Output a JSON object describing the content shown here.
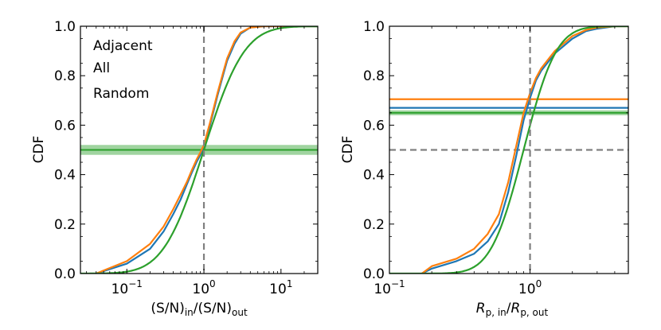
{
  "chart_data": [
    {
      "type": "line",
      "xscale": "log",
      "xlim": [
        0.025,
        30
      ],
      "ylim": [
        0,
        1
      ],
      "xlabel": "(S/N)in/(S/N)out",
      "xlabel_parts": {
        "open": "(S/N)",
        "sub1": "in",
        "mid": "/(S/N)",
        "sub2": "out"
      },
      "ylabel": "CDF",
      "xticks": [
        {
          "value": 0.1,
          "base": "10",
          "exp": "−1"
        },
        {
          "value": 1,
          "base": "10",
          "exp": "0"
        },
        {
          "value": 10,
          "base": "10",
          "exp": "1"
        }
      ],
      "yticks": [
        0.0,
        0.2,
        0.4,
        0.6,
        0.8,
        1.0
      ],
      "ytick_labels": [
        "0.0",
        "0.2",
        "0.4",
        "0.6",
        "0.8",
        "1.0"
      ],
      "legend": [
        {
          "label": "Adjacent",
          "color": "#1f77b4"
        },
        {
          "label": "All",
          "color": "#ff7f0e"
        },
        {
          "label": "Random",
          "color": "#2ca02c"
        }
      ],
      "series": [
        {
          "name": "Adjacent",
          "color": "#1f77b4",
          "x": [
            0.04,
            0.1,
            0.2,
            0.3,
            0.4,
            0.5,
            0.6,
            0.7,
            0.8,
            0.9,
            1.0,
            1.2,
            1.5,
            1.8,
            2.0,
            2.5,
            3.0,
            4.0,
            6.0
          ],
          "y": [
            0.0,
            0.04,
            0.1,
            0.17,
            0.24,
            0.3,
            0.36,
            0.41,
            0.45,
            0.48,
            0.51,
            0.6,
            0.72,
            0.81,
            0.86,
            0.93,
            0.97,
            0.995,
            1.0
          ]
        },
        {
          "name": "All",
          "color": "#ff7f0e",
          "x": [
            0.04,
            0.1,
            0.2,
            0.3,
            0.4,
            0.5,
            0.6,
            0.7,
            0.8,
            0.9,
            1.0,
            1.2,
            1.5,
            1.8,
            2.0,
            2.5,
            3.0,
            4.0,
            6.0
          ],
          "y": [
            0.0,
            0.05,
            0.12,
            0.19,
            0.26,
            0.32,
            0.37,
            0.42,
            0.46,
            0.49,
            0.52,
            0.61,
            0.73,
            0.82,
            0.87,
            0.94,
            0.975,
            0.995,
            1.0
          ]
        },
        {
          "name": "Random",
          "color": "#2ca02c",
          "model": "lognormal_cdf",
          "median": 1.0,
          "sigma_ln": 0.95
        }
      ],
      "vlines": [
        {
          "x": 1.0,
          "style": "dashed",
          "color": "#808080"
        }
      ],
      "hbands": [
        {
          "y": 0.5,
          "low": 0.48,
          "high": 0.52,
          "color": "#2ca02c"
        }
      ]
    },
    {
      "type": "line",
      "xscale": "log",
      "xlim": [
        0.1,
        5
      ],
      "ylim": [
        0,
        1
      ],
      "xlabel": "Rp,in/Rp,out",
      "xlabel_parts": {
        "r1": "R",
        "sub1": "p, in",
        "slash": "/",
        "r2": "R",
        "sub2": "p, out"
      },
      "ylabel": "CDF",
      "xticks": [
        {
          "value": 0.1,
          "base": "10",
          "exp": "−1"
        },
        {
          "value": 1,
          "base": "10",
          "exp": "0"
        }
      ],
      "yticks": [
        0.0,
        0.2,
        0.4,
        0.6,
        0.8,
        1.0
      ],
      "ytick_labels": [
        "0.0",
        "0.2",
        "0.4",
        "0.6",
        "0.8",
        "1.0"
      ],
      "series": [
        {
          "name": "Adjacent",
          "color": "#1f77b4",
          "x": [
            0.17,
            0.2,
            0.3,
            0.4,
            0.5,
            0.6,
            0.7,
            0.8,
            0.9,
            1.0,
            1.1,
            1.2,
            1.5,
            2.0,
            2.5,
            3.0,
            4.0
          ],
          "y": [
            0.0,
            0.02,
            0.05,
            0.08,
            0.13,
            0.2,
            0.33,
            0.48,
            0.62,
            0.71,
            0.78,
            0.82,
            0.89,
            0.95,
            0.98,
            0.99,
            1.0
          ]
        },
        {
          "name": "All",
          "color": "#ff7f0e",
          "x": [
            0.17,
            0.2,
            0.3,
            0.4,
            0.5,
            0.6,
            0.7,
            0.8,
            0.9,
            1.0,
            1.1,
            1.2,
            1.5,
            2.0,
            2.5,
            3.0,
            4.0
          ],
          "y": [
            0.0,
            0.03,
            0.06,
            0.1,
            0.16,
            0.24,
            0.37,
            0.52,
            0.65,
            0.73,
            0.79,
            0.83,
            0.9,
            0.96,
            0.985,
            0.995,
            1.0
          ]
        },
        {
          "name": "Random",
          "color": "#2ca02c",
          "model": "lognormal_cdf",
          "median": 0.9,
          "sigma_ln": 0.42
        }
      ],
      "vlines": [
        {
          "x": 1.0,
          "style": "dashed",
          "color": "#808080"
        }
      ],
      "hlines": [
        {
          "y": 0.5,
          "style": "dashed",
          "color": "#808080"
        },
        {
          "y": 0.705,
          "style": "solid",
          "color": "#ff7f0e"
        },
        {
          "y": 0.67,
          "style": "solid",
          "color": "#1f77b4"
        }
      ],
      "hbands": [
        {
          "y": 0.65,
          "low": 0.64,
          "high": 0.66,
          "color": "#2ca02c"
        }
      ]
    }
  ]
}
